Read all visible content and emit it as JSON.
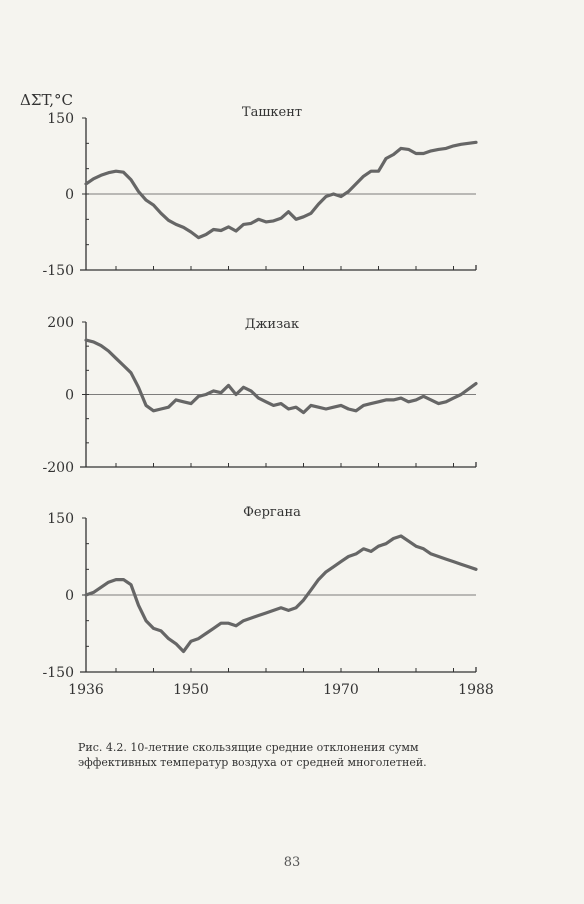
{
  "ylabel": "ΔΣT,°C",
  "caption": "Рис. 4.2. 10-летние скользящие средние отклонения сумм эффективных температур воздуха от средней многолетней.",
  "page_number": "83",
  "colors": {
    "line": "#666666",
    "axis": "#333333",
    "zero": "#555555"
  },
  "x_ticks": [
    {
      "value": 1936,
      "label": "1936"
    },
    {
      "value": 1950,
      "label": "1950"
    },
    {
      "value": 1970,
      "label": "1970"
    },
    {
      "value": 1988,
      "label": "1988"
    }
  ],
  "chart_data": [
    {
      "type": "line",
      "title": "Ташкент",
      "ylim": [
        -150,
        150
      ],
      "yticks": [
        150,
        0,
        -150
      ],
      "ytick_labels": [
        "150",
        "0",
        "-150"
      ],
      "xlim": [
        1936,
        1988
      ],
      "series": [
        {
          "x": [
            1936,
            1937,
            1938,
            1939,
            1940,
            1941,
            1942,
            1943,
            1944,
            1945,
            1946,
            1947,
            1948,
            1949,
            1950,
            1951,
            1952,
            1953,
            1954,
            1955,
            1956,
            1957,
            1958,
            1959,
            1960,
            1961,
            1962,
            1963,
            1964,
            1965,
            1966,
            1967,
            1968,
            1969,
            1970,
            1971,
            1972,
            1973,
            1974,
            1975,
            1976,
            1977,
            1978,
            1979,
            1980,
            1981,
            1982,
            1983,
            1984,
            1985,
            1986,
            1987,
            1988
          ],
          "values": [
            20,
            30,
            37,
            42,
            45,
            43,
            28,
            5,
            -12,
            -22,
            -38,
            -52,
            -60,
            -66,
            -75,
            -86,
            -80,
            -70,
            -72,
            -65,
            -73,
            -60,
            -58,
            -50,
            -55,
            -53,
            -48,
            -35,
            -50,
            -45,
            -38,
            -20,
            -5,
            0,
            -5,
            5,
            20,
            35,
            45,
            45,
            70,
            78,
            90,
            88,
            80,
            80,
            85,
            88,
            90,
            95,
            98,
            100,
            102
          ]
        }
      ]
    },
    {
      "type": "line",
      "title": "Джизак",
      "ylim": [
        -200,
        200
      ],
      "yticks": [
        200,
        0,
        -200
      ],
      "ytick_labels": [
        "200",
        "0",
        "-200"
      ],
      "xlim": [
        1936,
        1988
      ],
      "series": [
        {
          "x": [
            1936,
            1937,
            1938,
            1939,
            1940,
            1941,
            1942,
            1943,
            1944,
            1945,
            1946,
            1947,
            1948,
            1949,
            1950,
            1951,
            1952,
            1953,
            1954,
            1955,
            1956,
            1957,
            1958,
            1959,
            1960,
            1961,
            1962,
            1963,
            1964,
            1965,
            1966,
            1967,
            1968,
            1969,
            1970,
            1971,
            1972,
            1973,
            1974,
            1975,
            1976,
            1977,
            1978,
            1979,
            1980,
            1981,
            1982,
            1983,
            1984,
            1985,
            1986,
            1987,
            1988
          ],
          "values": [
            150,
            145,
            135,
            120,
            100,
            80,
            60,
            20,
            -30,
            -45,
            -40,
            -35,
            -15,
            -20,
            -25,
            -5,
            0,
            10,
            5,
            25,
            0,
            20,
            10,
            -10,
            -20,
            -30,
            -25,
            -40,
            -35,
            -50,
            -30,
            -35,
            -40,
            -35,
            -30,
            -40,
            -45,
            -30,
            -25,
            -20,
            -15,
            -15,
            -10,
            -20,
            -15,
            -5,
            -15,
            -25,
            -20,
            -10,
            0,
            15,
            30
          ]
        }
      ]
    },
    {
      "type": "line",
      "title": "Фергана",
      "ylim": [
        -150,
        150
      ],
      "yticks": [
        150,
        0,
        -150
      ],
      "ytick_labels": [
        "150",
        "0",
        "-150"
      ],
      "xlim": [
        1936,
        1988
      ],
      "series": [
        {
          "x": [
            1936,
            1937,
            1938,
            1939,
            1940,
            1941,
            1942,
            1943,
            1944,
            1945,
            1946,
            1947,
            1948,
            1949,
            1950,
            1951,
            1952,
            1953,
            1954,
            1955,
            1956,
            1957,
            1958,
            1959,
            1960,
            1961,
            1962,
            1963,
            1964,
            1965,
            1966,
            1967,
            1968,
            1969,
            1970,
            1971,
            1972,
            1973,
            1974,
            1975,
            1976,
            1977,
            1978,
            1979,
            1980,
            1981,
            1982,
            1983,
            1984,
            1985,
            1986,
            1987,
            1988
          ],
          "values": [
            0,
            5,
            15,
            25,
            30,
            30,
            20,
            -20,
            -50,
            -65,
            -70,
            -85,
            -95,
            -110,
            -90,
            -85,
            -75,
            -65,
            -55,
            -55,
            -60,
            -50,
            -45,
            -40,
            -35,
            -30,
            -25,
            -30,
            -25,
            -10,
            10,
            30,
            45,
            55,
            65,
            75,
            80,
            90,
            85,
            95,
            100,
            110,
            115,
            105,
            95,
            90,
            80,
            75,
            70,
            65,
            60,
            55,
            50
          ]
        }
      ]
    }
  ]
}
